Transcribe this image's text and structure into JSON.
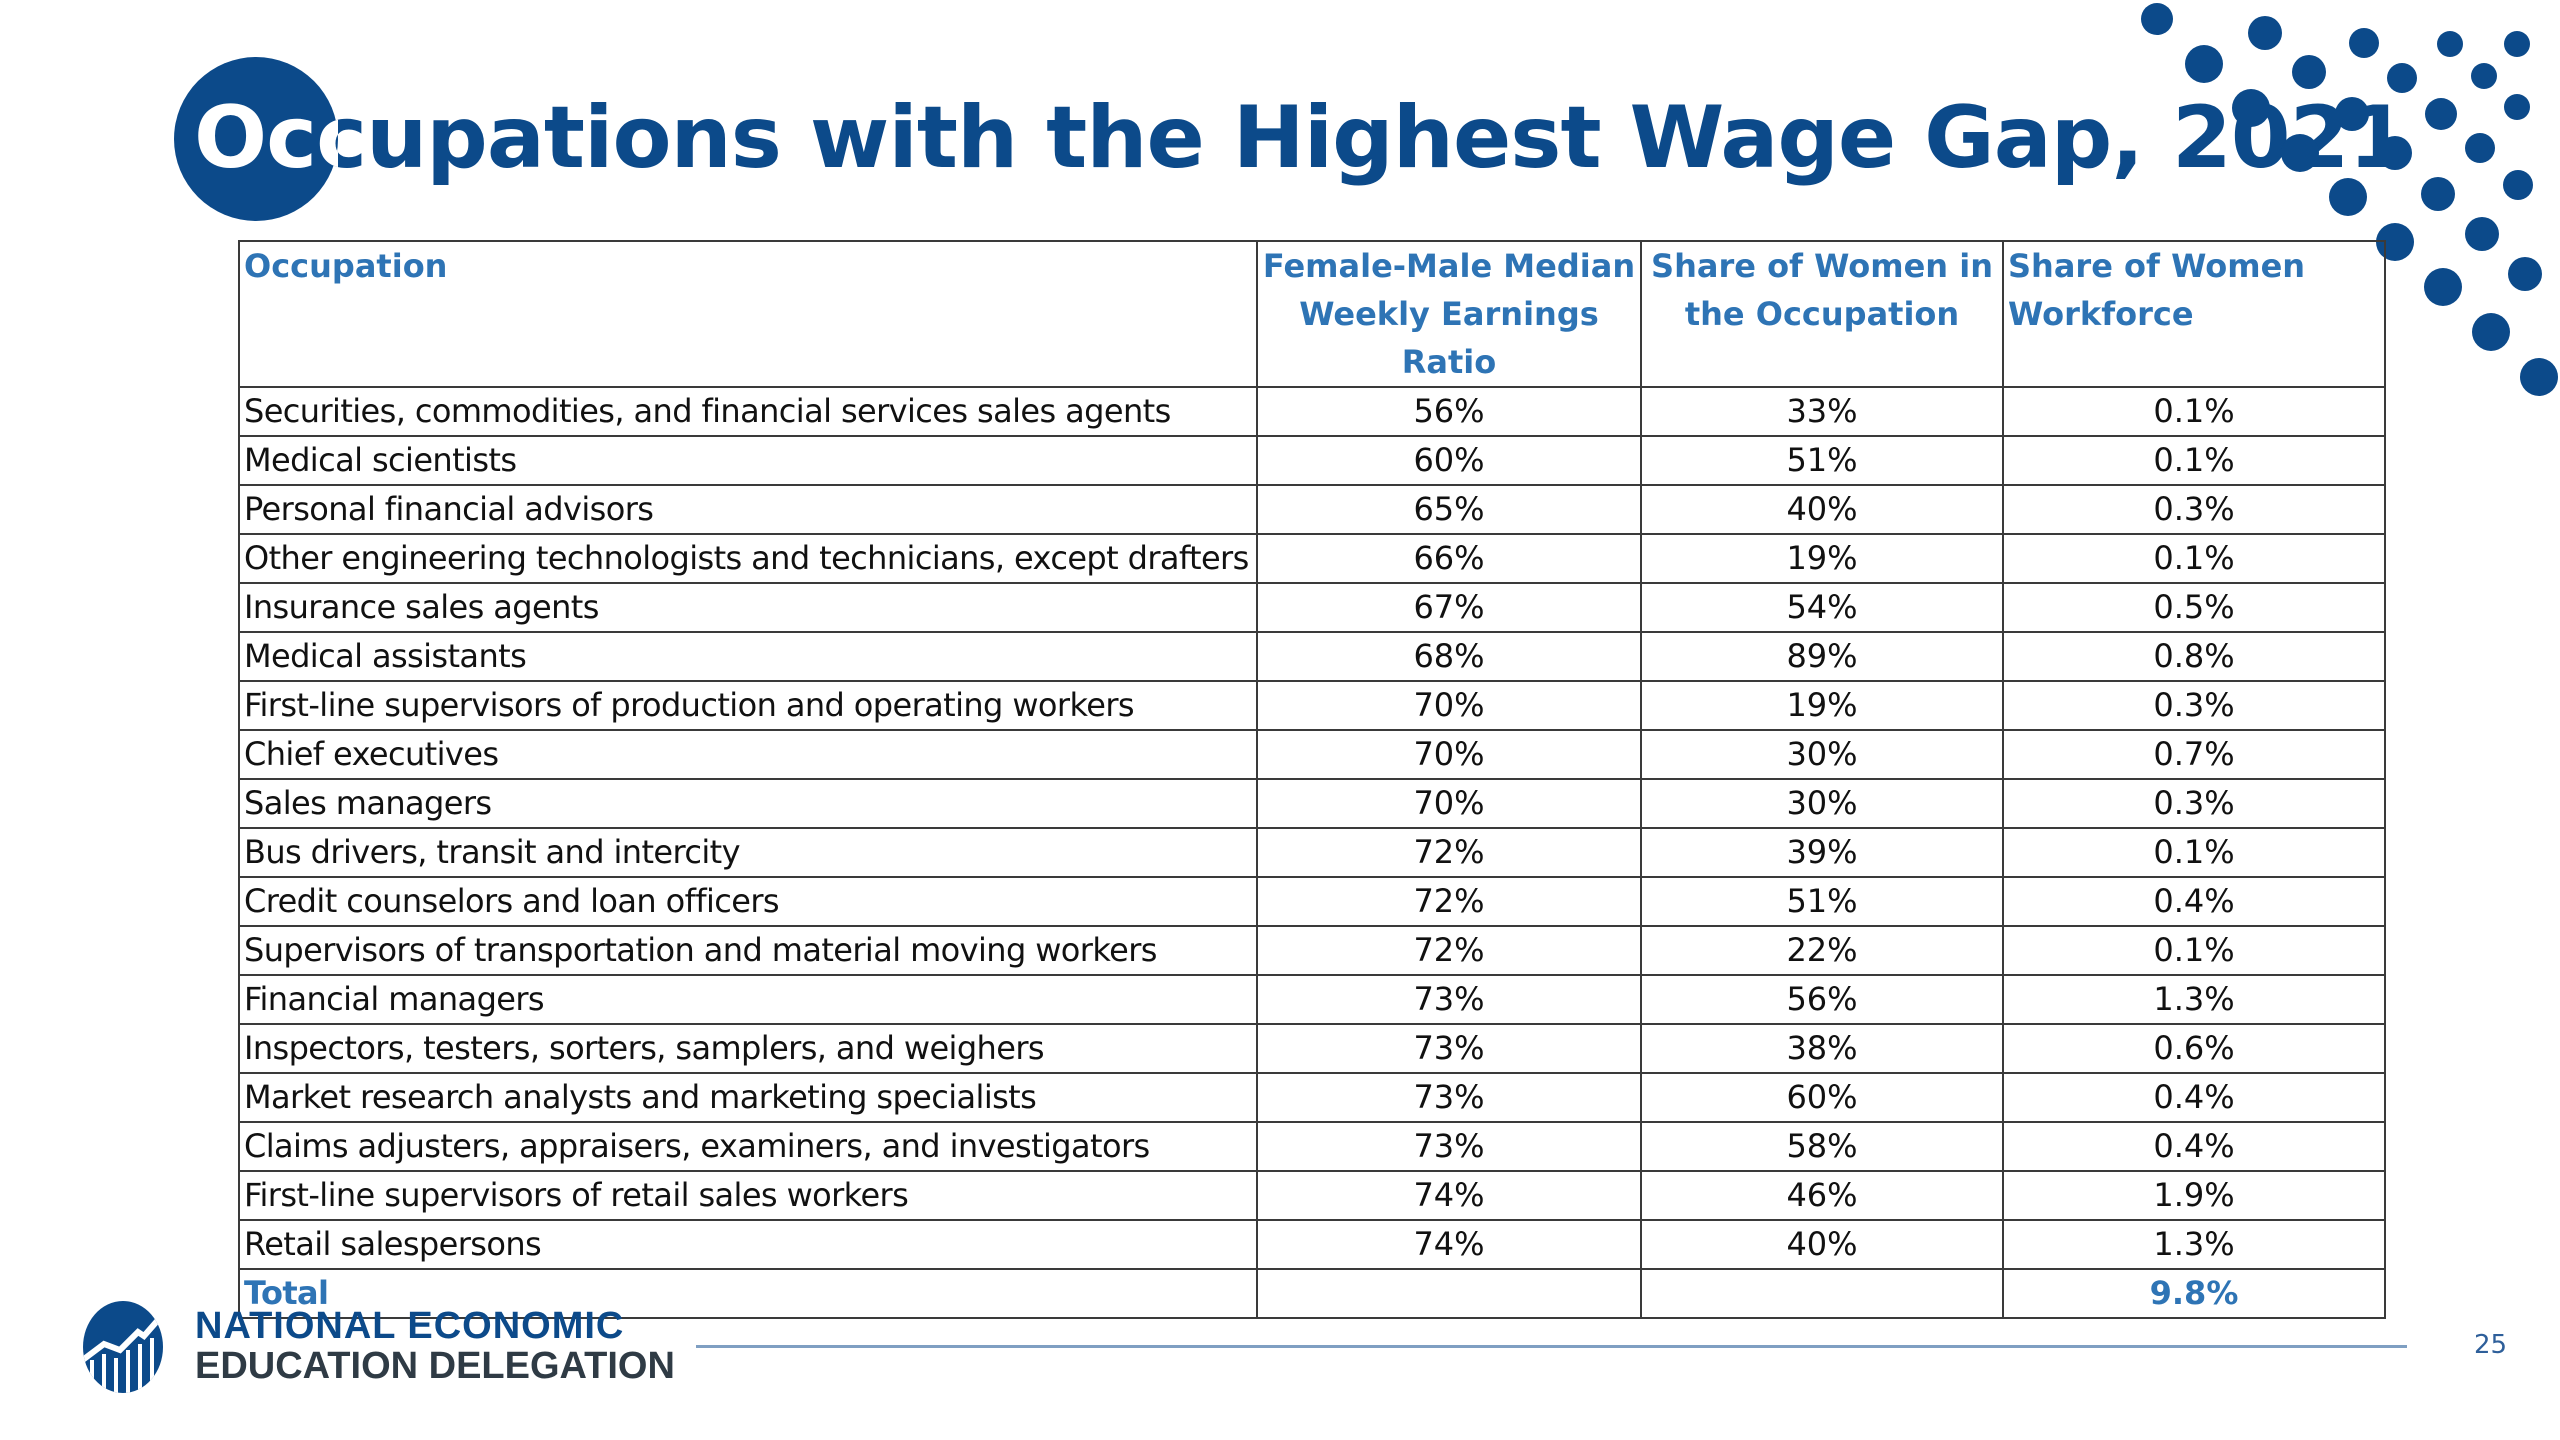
{
  "slide": {
    "title": "Occupations with the Highest Wage Gap, 2021",
    "page_number": "25",
    "colors": {
      "brand_blue": "#0c4a8a",
      "header_blue": "#2e74b5",
      "text": "#111111"
    }
  },
  "table": {
    "headers": [
      "Occupation",
      "Female-Male Median Weekly Earnings Ratio",
      "Share of Women in the Occupation",
      "Share of  Women Workforce"
    ],
    "rows": [
      [
        "Securities, commodities, and financial services sales agents",
        "56%",
        "33%",
        "0.1%"
      ],
      [
        "Medical scientists",
        "60%",
        "51%",
        "0.1%"
      ],
      [
        "Personal financial advisors",
        "65%",
        "40%",
        "0.3%"
      ],
      [
        "Other engineering technologists and technicians, except drafters",
        "66%",
        "19%",
        "0.1%"
      ],
      [
        "Insurance sales agents",
        "67%",
        "54%",
        "0.5%"
      ],
      [
        "Medical assistants",
        "68%",
        "89%",
        "0.8%"
      ],
      [
        "First-line supervisors of production and operating workers",
        "70%",
        "19%",
        "0.3%"
      ],
      [
        "Chief executives",
        "70%",
        "30%",
        "0.7%"
      ],
      [
        "Sales managers",
        "70%",
        "30%",
        "0.3%"
      ],
      [
        "Bus drivers, transit and intercity",
        "72%",
        "39%",
        "0.1%"
      ],
      [
        "Credit counselors and loan officers",
        "72%",
        "51%",
        "0.4%"
      ],
      [
        "Supervisors of transportation and material moving workers",
        "72%",
        "22%",
        "0.1%"
      ],
      [
        "Financial managers",
        "73%",
        "56%",
        "1.3%"
      ],
      [
        "Inspectors, testers, sorters, samplers, and weighers",
        "73%",
        "38%",
        "0.6%"
      ],
      [
        "Market research analysts and marketing specialists",
        "73%",
        "60%",
        "0.4%"
      ],
      [
        "Claims adjusters, appraisers, examiners, and investigators",
        "73%",
        "58%",
        "0.4%"
      ],
      [
        "First-line supervisors of retail sales workers",
        "74%",
        "46%",
        "1.9%"
      ],
      [
        "Retail salespersons",
        "74%",
        "40%",
        "1.3%"
      ]
    ],
    "total": [
      "Total",
      "",
      "",
      "9.8%"
    ]
  },
  "footer": {
    "logo_icon": "rising-chart-globe-icon",
    "org_line1": "NATIONAL ECONOMIC",
    "org_line2": "EDUCATION DELEGATION"
  }
}
